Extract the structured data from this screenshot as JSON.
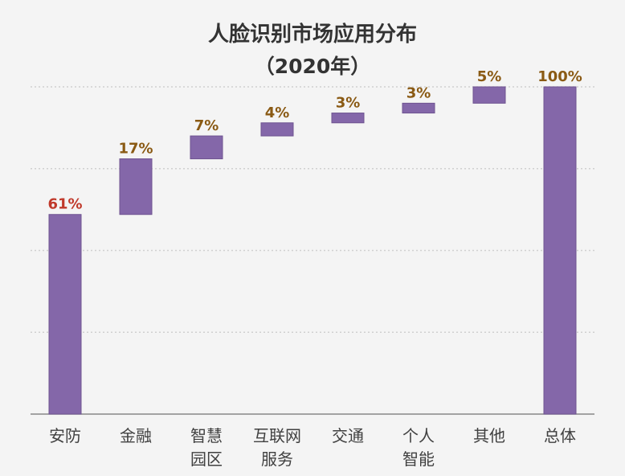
{
  "chart_data": {
    "type": "bar",
    "subtype": "waterfall",
    "title": "人脸识别市场应用分布",
    "subtitle": "（2020年）",
    "categories": [
      [
        "安防"
      ],
      [
        "金融"
      ],
      [
        "智慧",
        "园区"
      ],
      [
        "互联网",
        "服务"
      ],
      [
        "交通"
      ],
      [
        "个人",
        "智能"
      ],
      [
        "其他"
      ],
      [
        "总体"
      ]
    ],
    "values": [
      61,
      17,
      7,
      4,
      3,
      3,
      5,
      100
    ],
    "value_labels": [
      "61%",
      "17%",
      "7%",
      "4%",
      "3%",
      "3%",
      "5%",
      "100%"
    ],
    "ylim": [
      0,
      100
    ],
    "grid": true,
    "legend": "none",
    "colors": {
      "bar": "#8467a9",
      "bar_edge": "#6f5491",
      "first_label": "#c0392b",
      "label": "#8a5a14",
      "axis": "#888888",
      "grid": "#d0d0d0"
    }
  }
}
